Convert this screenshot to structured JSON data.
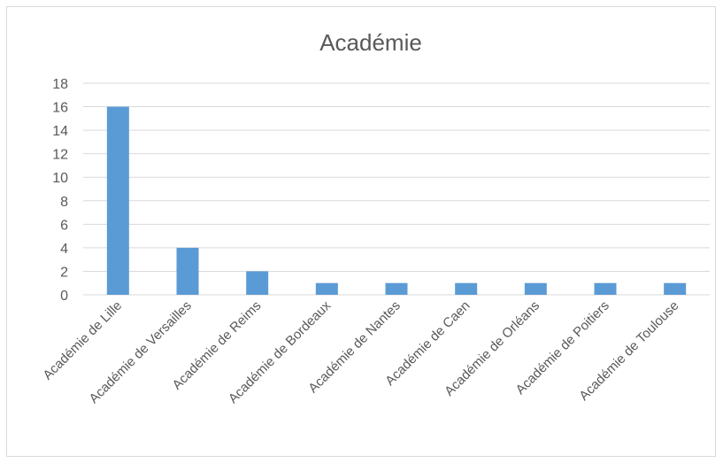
{
  "chart_data": {
    "type": "bar",
    "title": "Académie",
    "xlabel": "",
    "ylabel": "",
    "categories": [
      "Académie de Lille",
      "Académie de Versailles",
      "Académie de Reims",
      "Académie de Bordeaux",
      "Académie de Nantes",
      "Académie de Caen",
      "Académie de Orléans",
      "Académie de Poitiers",
      "Académie de Toulouse"
    ],
    "values": [
      16,
      4,
      2,
      1,
      1,
      1,
      1,
      1,
      1
    ],
    "ylim": [
      0,
      18
    ],
    "yticks": [
      0,
      2,
      4,
      6,
      8,
      10,
      12,
      14,
      16,
      18
    ],
    "grid": true,
    "legend": "none",
    "bar_color": "#5b9bd5",
    "gridline_color": "#d9d9d9"
  }
}
